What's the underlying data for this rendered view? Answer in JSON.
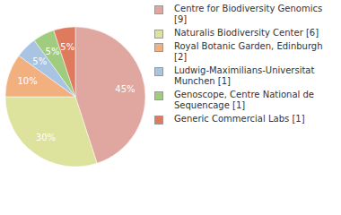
{
  "chart_data": {
    "type": "pie",
    "categories": [
      "Centre for Biodiversity Genomics [9]",
      "Naturalis Biodiversity Center [6]",
      "Royal Botanic Garden, Edinburgh [2]",
      "Ludwig-Maximilians-Universitat Munchen [1]",
      "Genoscope, Centre National de Sequencage [1]",
      "Generic Commercial Labs [1]"
    ],
    "values": [
      45,
      30,
      10,
      5,
      5,
      5
    ],
    "value_labels": [
      "45%",
      "30%",
      "10%",
      "5%",
      "5%",
      "5%"
    ],
    "colors": [
      "#e0a6a0",
      "#dde29c",
      "#f2b07e",
      "#a8c4e2",
      "#9fcc7e",
      "#e07a5f"
    ],
    "data_labels": true,
    "legend": "right"
  }
}
